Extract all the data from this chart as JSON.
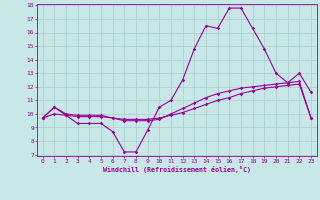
{
  "x": [
    0,
    1,
    2,
    3,
    4,
    5,
    6,
    7,
    8,
    9,
    10,
    11,
    12,
    13,
    14,
    15,
    16,
    17,
    18,
    19,
    20,
    21,
    22,
    23
  ],
  "line1": [
    9.7,
    10.5,
    9.9,
    9.3,
    9.3,
    9.3,
    8.7,
    7.2,
    7.2,
    8.8,
    10.5,
    11.0,
    12.5,
    14.8,
    16.5,
    16.3,
    17.8,
    17.8,
    16.3,
    14.8,
    13.0,
    12.3,
    13.0,
    11.6
  ],
  "line2": [
    9.7,
    10.5,
    10.0,
    9.9,
    9.9,
    9.9,
    9.7,
    9.5,
    9.5,
    9.5,
    9.6,
    10.0,
    10.4,
    10.8,
    11.2,
    11.5,
    11.7,
    11.9,
    12.0,
    12.1,
    12.2,
    12.3,
    12.4,
    9.7
  ],
  "line3": [
    9.7,
    10.0,
    9.9,
    9.8,
    9.8,
    9.8,
    9.7,
    9.6,
    9.6,
    9.6,
    9.7,
    9.9,
    10.1,
    10.4,
    10.7,
    11.0,
    11.2,
    11.5,
    11.7,
    11.9,
    12.0,
    12.1,
    12.2,
    9.7
  ],
  "line_color": "#990099",
  "bg_color": "#c8e8e8",
  "grid_color": "#aacccc",
  "xlabel": "Windchill (Refroidissement éolien,°C)",
  "ylim": [
    7,
    18
  ],
  "xlim": [
    -0.5,
    23.5
  ],
  "yticks": [
    7,
    8,
    9,
    10,
    11,
    12,
    13,
    14,
    15,
    16,
    17,
    18
  ],
  "xticks": [
    0,
    1,
    2,
    3,
    4,
    5,
    6,
    7,
    8,
    9,
    10,
    11,
    12,
    13,
    14,
    15,
    16,
    17,
    18,
    19,
    20,
    21,
    22,
    23
  ]
}
